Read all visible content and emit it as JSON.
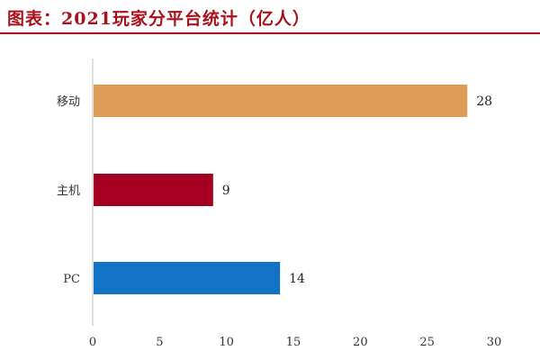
{
  "chart_data": {
    "type": "bar",
    "orientation": "horizontal",
    "title": "图表：2021玩家分平台统计（亿人）",
    "categories": [
      "移动",
      "主机",
      "PC"
    ],
    "values": [
      28,
      9,
      14
    ],
    "colors": [
      "#dd9d57",
      "#a50021",
      "#1273c4"
    ],
    "xlim": [
      0,
      30
    ],
    "xticks": [
      0,
      5,
      10,
      15,
      20,
      25,
      30
    ],
    "grid": false,
    "xlabel": "",
    "ylabel": ""
  }
}
